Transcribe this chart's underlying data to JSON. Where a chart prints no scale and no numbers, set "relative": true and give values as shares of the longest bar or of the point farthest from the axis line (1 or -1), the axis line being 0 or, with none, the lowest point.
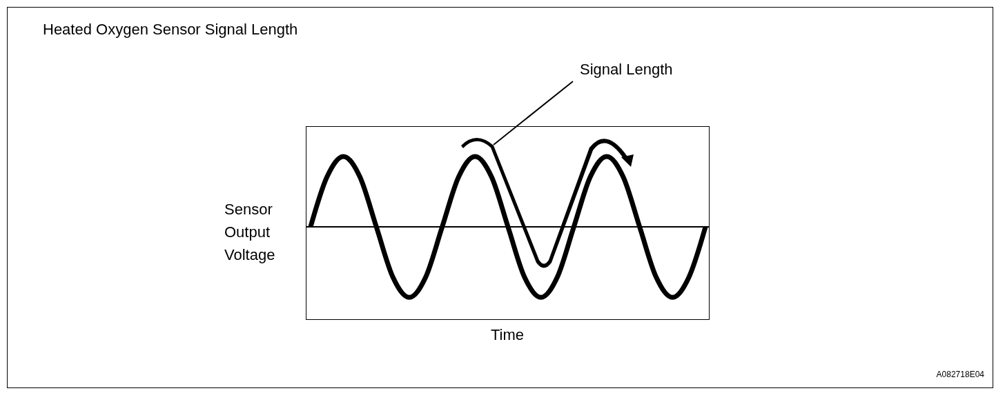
{
  "chart_data": {
    "type": "line",
    "title": "Heated Oxygen Sensor Signal Length",
    "xlabel": "Time",
    "ylabel": "Sensor Output Voltage",
    "relative": true,
    "categories": [
      null,
      null,
      null,
      null,
      null,
      null,
      null,
      null,
      null,
      null,
      null,
      null,
      null,
      null,
      null,
      null,
      null,
      null,
      null,
      null,
      null,
      null,
      null,
      null,
      null
    ],
    "series": [
      {
        "color": "#000000",
        "values": [
          0,
          0.71,
          1,
          0.71,
          0,
          -0.71,
          -1,
          -0.71,
          0,
          0.71,
          1,
          0.71,
          0,
          -0.71,
          -1,
          -0.71,
          0,
          0.71,
          1,
          0.71,
          0,
          -0.71,
          -1,
          -0.71,
          0
        ]
      }
    ],
    "ref_lines": [
      {
        "axis": "y",
        "value": 0,
        "color": "#000000"
      }
    ],
    "annotations": [
      "Signal Length",
      "A082718E04"
    ]
  }
}
